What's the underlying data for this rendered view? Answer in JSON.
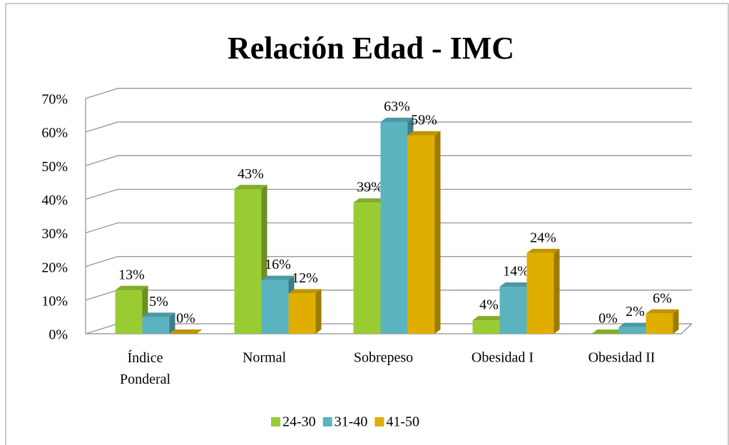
{
  "chart_data": {
    "type": "bar3d",
    "title": "Relación Edad - IMC",
    "categories": [
      "Índice Ponderal",
      "Normal",
      "Sobrepeso",
      "Obesidad I",
      "Obesidad II"
    ],
    "series": [
      {
        "name": "24-30",
        "color": "#99cc33",
        "values": [
          13,
          43,
          39,
          4,
          0
        ],
        "value_labels": [
          "13%",
          "43%",
          "39%",
          "4%",
          "0%"
        ]
      },
      {
        "name": "31-40",
        "color": "#5bb3bf",
        "values": [
          5,
          16,
          63,
          14,
          2
        ],
        "value_labels": [
          "5%",
          "16%",
          "63%",
          "14%",
          "2%"
        ]
      },
      {
        "name": "41-50",
        "color": "#e0ae00",
        "values": [
          0,
          12,
          59,
          24,
          6
        ],
        "value_labels": [
          "0%",
          "12%",
          "59%",
          "24%",
          "6%"
        ]
      }
    ],
    "ylim": [
      0,
      70
    ],
    "yticks": [
      {
        "value": 0,
        "label": "0%"
      },
      {
        "value": 10,
        "label": "10%"
      },
      {
        "value": 20,
        "label": "20%"
      },
      {
        "value": 30,
        "label": "30%"
      },
      {
        "value": 40,
        "label": "40%"
      },
      {
        "value": 50,
        "label": "50%"
      },
      {
        "value": 60,
        "label": "60%"
      },
      {
        "value": 70,
        "label": "70%"
      }
    ],
    "grid": true,
    "legend": "bottom"
  }
}
